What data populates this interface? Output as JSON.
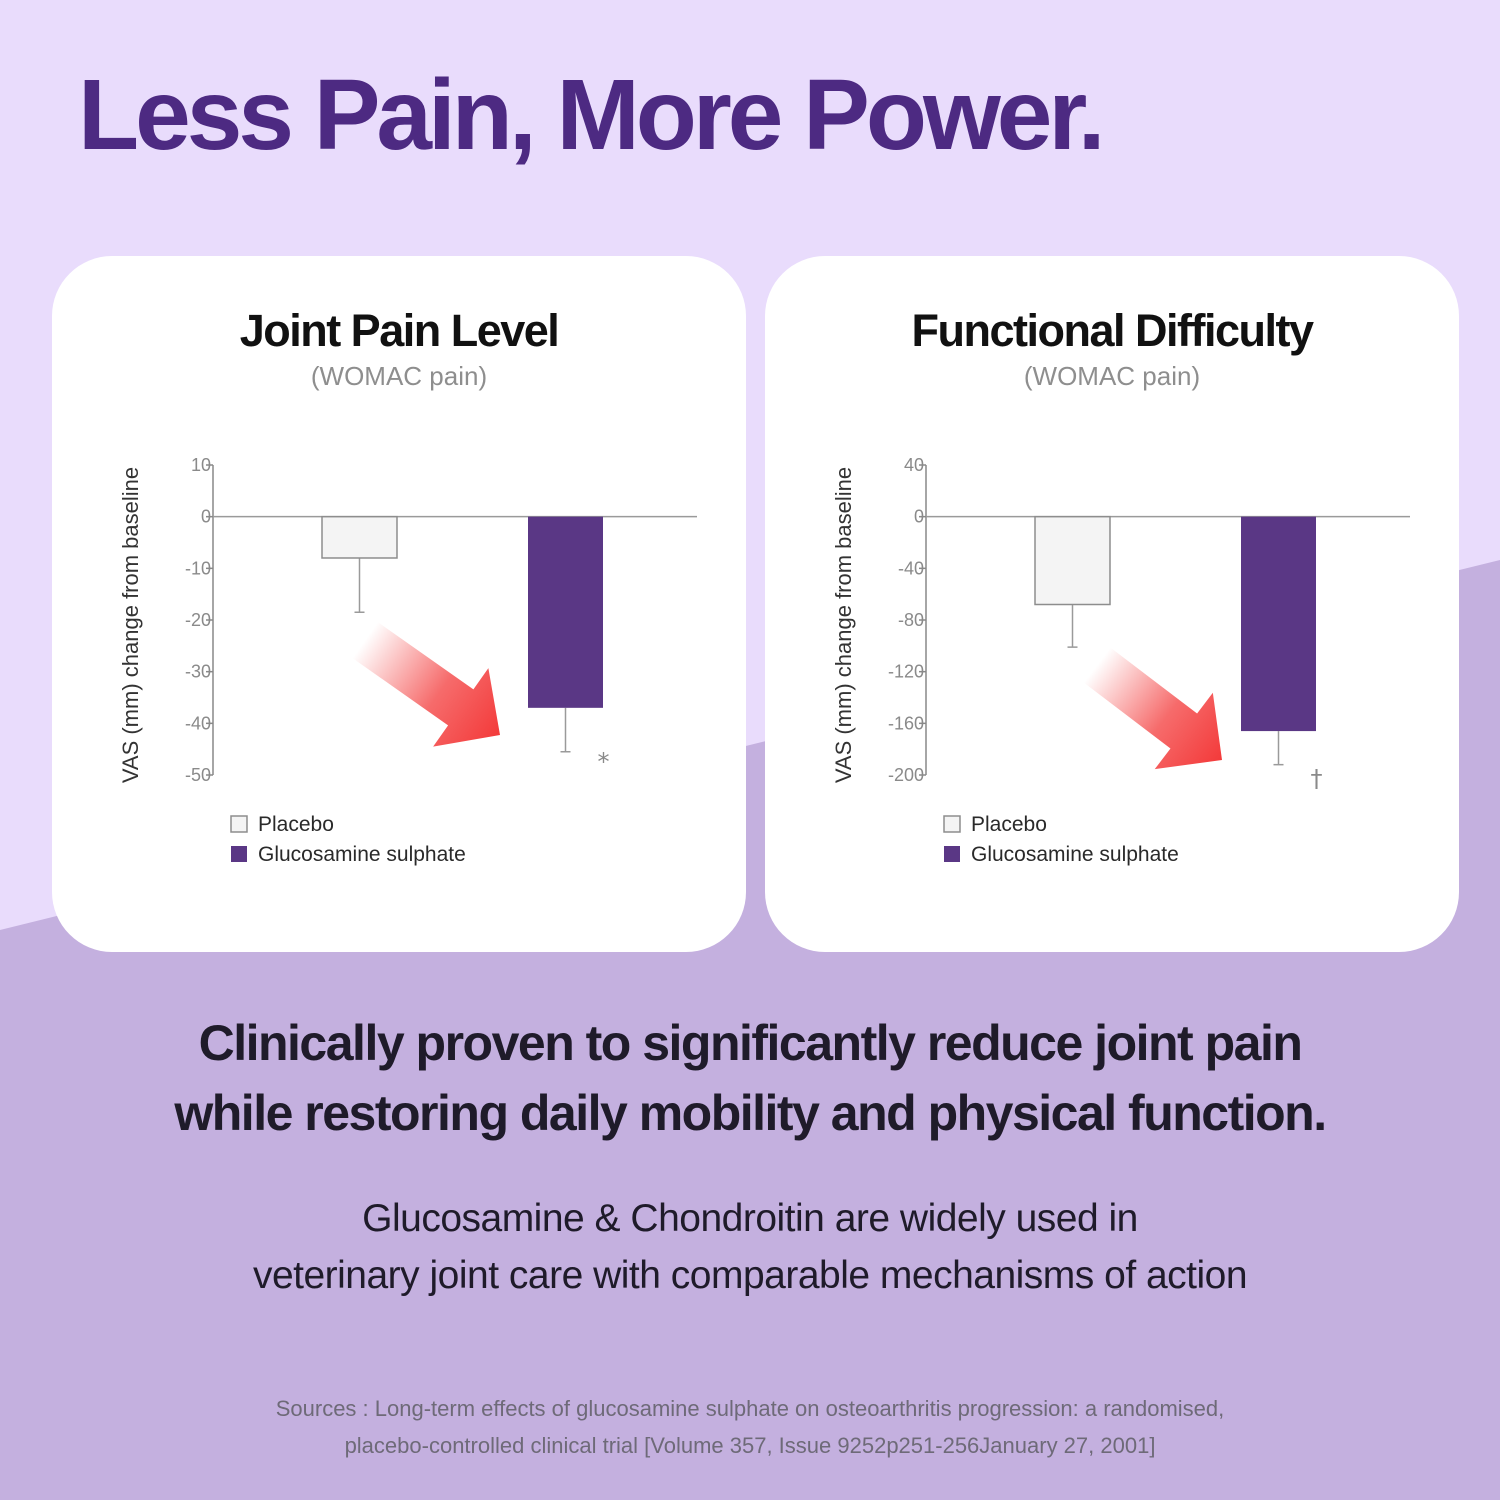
{
  "headline": "Less Pain, More Power.",
  "colors": {
    "bg_top": "#e9dcfc",
    "bg_bottom": "#c4b0df",
    "headline": "#4d2a82",
    "placebo": "#f4f4f4",
    "glucosamine": "#5a3785",
    "arrow": "#f33a3a"
  },
  "chart_data": [
    {
      "type": "bar",
      "title": "Joint Pain Level",
      "subtitle": "(WOMAC pain)",
      "ylabel": "VAS (mm) change from baseline",
      "ylim": [
        -50,
        10
      ],
      "yticks": [
        10,
        0,
        -10,
        -20,
        -30,
        -40,
        -50
      ],
      "ytick_labels": [
        "10",
        "0",
        "-10",
        "-20",
        "-30",
        "-40",
        "-50"
      ],
      "series": [
        {
          "name": "Placebo",
          "value": -8,
          "error_low": -18.5
        },
        {
          "name": "Glucosamine sulphate",
          "value": -37,
          "error_low": -45.5,
          "annotation": "*"
        }
      ],
      "legend": [
        "Placebo",
        "Glucosamine sulphate"
      ],
      "legend_position": "bottom-left"
    },
    {
      "type": "bar",
      "title": "Functional Difficulty",
      "subtitle": "(WOMAC pain)",
      "ylabel": "VAS (mm) change from baseline",
      "ylim": [
        -200,
        40
      ],
      "yticks": [
        40,
        0,
        -40,
        -80,
        -120,
        -160,
        -200
      ],
      "ytick_labels": [
        "40",
        "0",
        "-40",
        "-80",
        "-120",
        "-160",
        "-200"
      ],
      "series": [
        {
          "name": "Placebo",
          "value": -68,
          "error_low": -101
        },
        {
          "name": "Glucosamine sulphate",
          "value": -166,
          "error_low": -192,
          "annotation": "†"
        }
      ],
      "legend": [
        "Placebo",
        "Glucosamine sulphate"
      ],
      "legend_position": "bottom-left"
    }
  ],
  "body_lines": [
    "Clinically proven to significantly reduce joint pain",
    "while restoring daily mobility and physical function."
  ],
  "sub_lines": [
    "Glucosamine & Chondroitin are widely used in",
    "veterinary joint care with comparable mechanisms of action"
  ],
  "source_lines": [
    "Sources : Long-term effects of glucosamine sulphate on osteoarthritis progression: a randomised,",
    "placebo-controlled clinical trial [Volume 357, Issue 9252p251-256January 27, 2001]"
  ]
}
